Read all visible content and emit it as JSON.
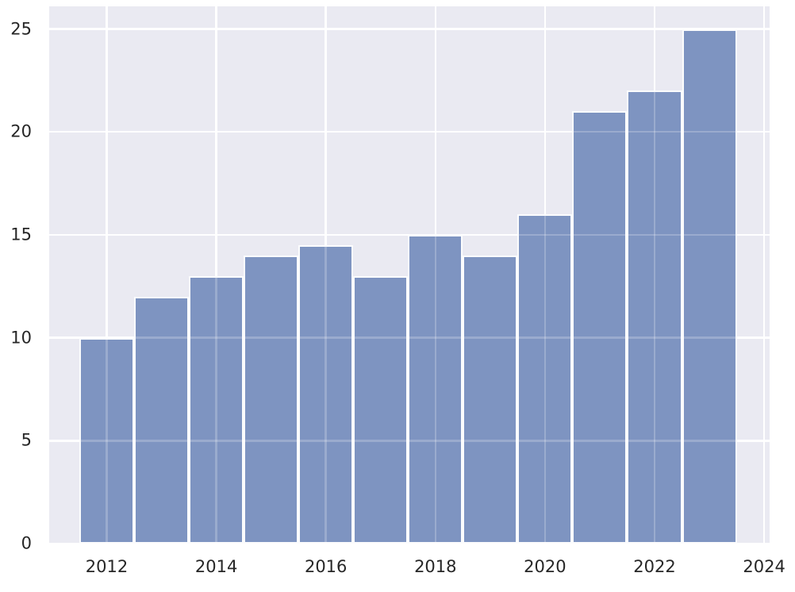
{
  "style": {
    "figure_background": "#ffffff",
    "axes_background": "#eaeaf2",
    "grid_color": "#ffffff",
    "grid_overlay_color": "rgba(255,255,255,0.22)",
    "bar_fill": "#7e94c1",
    "bar_edge": "#fbfcfd",
    "tick_label_color": "#262626"
  },
  "chart_data": {
    "type": "bar",
    "variant": "histogram-style yearly bars, seaborn darkgrid theme",
    "title": "",
    "xlabel": "",
    "ylabel": "",
    "categories": [
      2012,
      2013,
      2014,
      2015,
      2016,
      2017,
      2018,
      2019,
      2020,
      2021,
      2022,
      2023
    ],
    "values": [
      10,
      12,
      13,
      14,
      14.5,
      13,
      15,
      14,
      16,
      21,
      22,
      25
    ],
    "bar_width": 1.0,
    "x_ticks": [
      2012,
      2014,
      2016,
      2018,
      2020,
      2022,
      2024
    ],
    "y_ticks": [
      0,
      5,
      10,
      15,
      20,
      25
    ],
    "xlim": [
      2010.95,
      2024.1
    ],
    "ylim": [
      0,
      26.1
    ],
    "grid": true,
    "legend": false
  }
}
